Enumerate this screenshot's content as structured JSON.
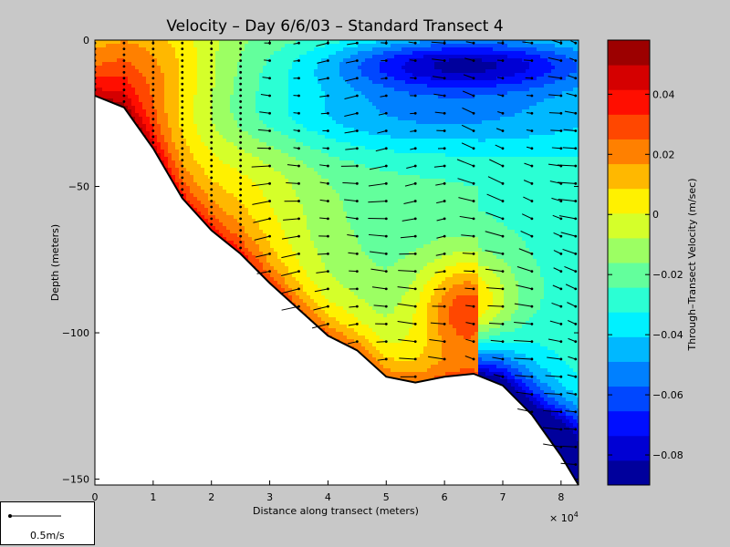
{
  "chart_data": {
    "type": "heatmap",
    "title": "Velocity – Day 6/6/03 – Standard Transect 4",
    "xlabel": "Distance along transect (meters)",
    "ylabel": "Depth (meters)",
    "x_exponent_label": "× 10",
    "x_exponent_power": "4",
    "xlim": [
      0,
      8.3
    ],
    "ylim": [
      -152,
      0
    ],
    "x_ticks": [
      "0",
      "1",
      "2",
      "3",
      "4",
      "5",
      "6",
      "7",
      "8"
    ],
    "y_ticks": [
      "0",
      "−50",
      "−100",
      "−150"
    ],
    "colorbar": {
      "label": "Through–Transect Velocity (m/sec)",
      "range": [
        -0.09,
        0.058
      ],
      "ticks": [
        "0.04",
        "0.02",
        "0",
        "−0.02",
        "−0.04",
        "−0.06",
        "−0.08"
      ]
    },
    "bottom_profile": {
      "x": [
        0,
        0.5,
        1,
        1.5,
        2,
        2.5,
        3,
        3.5,
        4,
        4.5,
        5,
        5.5,
        6,
        6.5,
        7,
        7.5,
        8,
        8.3
      ],
      "depth": [
        -19,
        -23,
        -37,
        -54,
        -65,
        -73,
        -83,
        -92,
        -101,
        -106,
        -115,
        -117,
        -115,
        -114,
        -118,
        -128,
        -142,
        -152
      ]
    },
    "scale_arrow_label": "0.5m/s"
  }
}
